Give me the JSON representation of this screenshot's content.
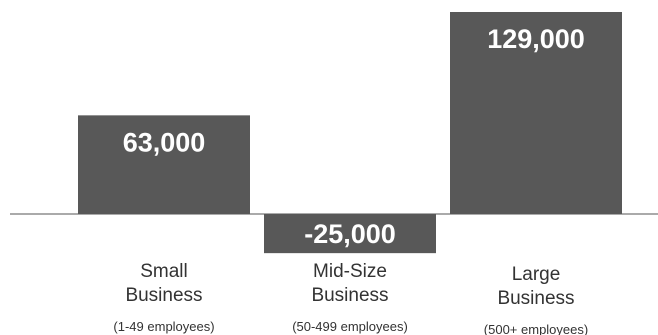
{
  "colors": {
    "bar": "#585858",
    "value_text": "#ffffff",
    "label_text": "#333333",
    "baseline": "#555555"
  },
  "chart_data": {
    "type": "bar",
    "title": "",
    "xlabel": "",
    "ylabel": "",
    "categories": [
      {
        "lines": [
          "Small",
          "Business"
        ],
        "sub": "(1-49 employees)"
      },
      {
        "lines": [
          "Mid-Size",
          "Business"
        ],
        "sub": "(50-499 employees)"
      },
      {
        "lines": [
          "Large",
          "Business"
        ],
        "sub": "(500+ employees)"
      }
    ],
    "values": [
      63000,
      -25000,
      129000
    ],
    "value_labels": [
      "63,000",
      "-25,000",
      "129,000"
    ],
    "ylim": [
      -25000,
      129000
    ],
    "grid": false,
    "legend": "none"
  }
}
